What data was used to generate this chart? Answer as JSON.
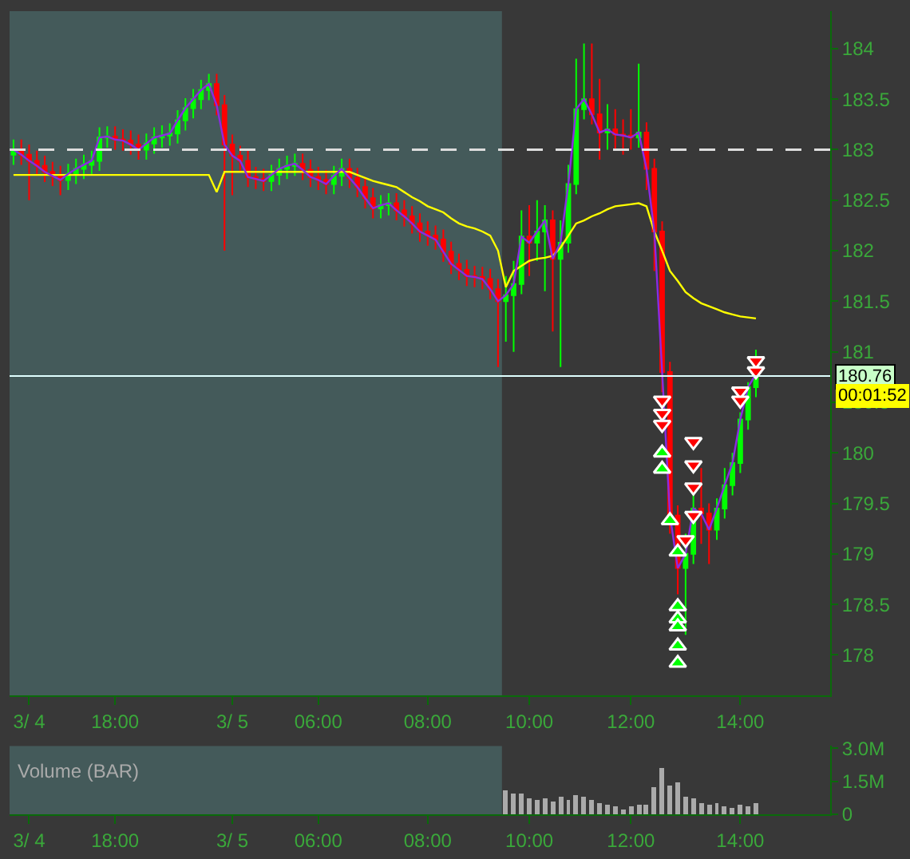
{
  "chart_data": [
    {
      "type": "candlestick",
      "categories": [
        null,
        null,
        "3/ 4",
        null,
        null,
        null,
        null,
        null,
        null,
        null,
        null,
        null,
        null,
        "18:00",
        null,
        null,
        null,
        null,
        null,
        null,
        null,
        null,
        null,
        null,
        null,
        null,
        null,
        null,
        "3/ 5",
        null,
        null,
        null,
        null,
        null,
        null,
        null,
        null,
        null,
        null,
        "06:00",
        null,
        null,
        null,
        null,
        null,
        null,
        null,
        null,
        null,
        null,
        null,
        null,
        null,
        "08:00",
        null,
        null,
        null,
        null,
        null,
        null,
        null,
        null,
        null,
        null,
        null,
        null,
        "10:00",
        null,
        null,
        null,
        null,
        null,
        null,
        null,
        null,
        null,
        null,
        null,
        null,
        "12:00",
        null,
        null,
        null,
        null,
        null,
        null,
        null,
        null,
        null,
        null,
        null,
        null,
        null,
        "14:00",
        null,
        null
      ],
      "ohlc": [
        [
          182.95,
          183.1,
          182.85,
          183.0
        ],
        [
          183.0,
          183.1,
          182.85,
          182.95
        ],
        [
          182.95,
          183.05,
          182.5,
          182.89
        ],
        [
          182.89,
          182.99,
          182.74,
          182.84
        ],
        [
          182.84,
          182.94,
          182.68,
          182.78
        ],
        [
          182.78,
          182.88,
          182.64,
          182.74
        ],
        [
          182.74,
          182.84,
          182.55,
          182.7
        ],
        [
          182.7,
          182.86,
          182.6,
          182.76
        ],
        [
          182.76,
          182.91,
          182.66,
          182.81
        ],
        [
          182.81,
          182.95,
          182.71,
          182.85
        ],
        [
          182.85,
          182.99,
          182.75,
          182.89
        ],
        [
          182.89,
          183.22,
          182.79,
          183.12
        ],
        [
          183.12,
          183.23,
          183.02,
          183.13
        ],
        [
          183.13,
          183.23,
          183.0,
          183.1
        ],
        [
          183.1,
          183.2,
          182.99,
          183.09
        ],
        [
          183.09,
          183.19,
          182.95,
          183.05
        ],
        [
          183.05,
          183.15,
          182.9,
          183.0
        ],
        [
          183.0,
          183.16,
          182.9,
          183.06
        ],
        [
          183.06,
          183.22,
          182.96,
          183.12
        ],
        [
          183.12,
          183.24,
          183.02,
          183.14
        ],
        [
          183.14,
          183.26,
          183.04,
          183.16
        ],
        [
          183.16,
          183.39,
          183.06,
          183.29
        ],
        [
          183.29,
          183.51,
          183.19,
          183.41
        ],
        [
          183.41,
          183.6,
          183.31,
          183.5
        ],
        [
          183.5,
          183.69,
          183.4,
          183.59
        ],
        [
          183.59,
          183.75,
          183.49,
          183.65
        ],
        [
          183.65,
          183.75,
          183.34,
          183.44
        ],
        [
          183.44,
          183.54,
          182.0,
          183.05
        ],
        [
          183.05,
          183.15,
          182.55,
          182.94
        ],
        [
          182.94,
          183.04,
          182.79,
          182.89
        ],
        [
          182.89,
          182.99,
          182.63,
          182.73
        ],
        [
          182.73,
          182.83,
          182.61,
          182.71
        ],
        [
          182.71,
          182.81,
          182.59,
          182.69
        ],
        [
          182.69,
          182.85,
          182.59,
          182.75
        ],
        [
          182.75,
          182.91,
          182.65,
          182.81
        ],
        [
          182.81,
          182.94,
          182.71,
          182.84
        ],
        [
          182.84,
          182.96,
          182.74,
          182.86
        ],
        [
          182.86,
          182.96,
          182.7,
          182.8
        ],
        [
          182.8,
          182.9,
          182.63,
          182.73
        ],
        [
          182.73,
          182.83,
          182.6,
          182.7
        ],
        [
          182.7,
          182.8,
          182.56,
          182.66
        ],
        [
          182.66,
          182.84,
          182.56,
          182.74
        ],
        [
          182.74,
          182.91,
          182.64,
          182.81
        ],
        [
          182.81,
          182.91,
          182.62,
          182.72
        ],
        [
          182.72,
          182.82,
          182.53,
          182.63
        ],
        [
          182.63,
          182.73,
          182.42,
          182.52
        ],
        [
          182.52,
          182.62,
          182.32,
          182.42
        ],
        [
          182.42,
          182.55,
          182.32,
          182.45
        ],
        [
          182.45,
          182.57,
          182.35,
          182.47
        ],
        [
          182.47,
          182.57,
          182.3,
          182.4
        ],
        [
          182.4,
          182.5,
          182.24,
          182.34
        ],
        [
          182.34,
          182.44,
          182.17,
          182.27
        ],
        [
          182.27,
          182.37,
          182.09,
          182.19
        ],
        [
          182.19,
          182.29,
          182.05,
          182.15
        ],
        [
          182.15,
          182.25,
          182.01,
          182.11
        ],
        [
          182.11,
          182.21,
          181.89,
          181.99
        ],
        [
          181.99,
          182.09,
          181.77,
          181.87
        ],
        [
          181.87,
          181.97,
          181.71,
          181.81
        ],
        [
          181.81,
          181.91,
          181.65,
          181.75
        ],
        [
          181.75,
          181.85,
          181.64,
          181.74
        ],
        [
          181.74,
          181.84,
          181.62,
          181.72
        ],
        [
          181.72,
          181.82,
          181.52,
          181.62
        ],
        [
          181.62,
          181.72,
          180.85,
          181.5
        ],
        [
          181.5,
          181.75,
          181.1,
          181.56
        ],
        [
          181.56,
          181.9,
          181.0,
          181.67
        ],
        [
          181.67,
          182.4,
          181.57,
          182.14
        ],
        [
          182.14,
          182.45,
          181.75,
          182.08
        ],
        [
          182.08,
          182.5,
          181.9,
          182.19
        ],
        [
          182.19,
          182.45,
          181.6,
          182.3
        ],
        [
          182.3,
          182.4,
          181.2,
          181.92
        ],
        [
          181.92,
          182.3,
          180.85,
          182.08
        ],
        [
          182.08,
          182.85,
          181.98,
          182.66
        ],
        [
          182.66,
          183.9,
          182.56,
          183.4
        ],
        [
          183.4,
          184.05,
          183.3,
          183.5
        ],
        [
          183.5,
          184.05,
          183.25,
          183.35
        ],
        [
          183.35,
          183.7,
          182.9,
          183.17
        ],
        [
          183.17,
          183.45,
          183.0,
          183.2
        ],
        [
          183.2,
          183.4,
          183.0,
          183.15
        ],
        [
          183.15,
          183.3,
          182.95,
          183.14
        ],
        [
          183.14,
          183.4,
          183.0,
          183.12
        ],
        [
          183.12,
          183.85,
          183.02,
          183.17
        ],
        [
          183.17,
          183.27,
          182.6,
          182.81
        ],
        [
          182.81,
          182.91,
          181.8,
          182.19
        ],
        [
          182.19,
          182.29,
          180.6,
          180.8
        ],
        [
          180.8,
          180.9,
          179.2,
          179.38
        ],
        [
          179.38,
          179.48,
          178.6,
          178.86
        ],
        [
          178.86,
          179.2,
          178.2,
          179.0
        ],
        [
          179.0,
          179.6,
          178.9,
          179.45
        ],
        [
          179.45,
          179.85,
          179.1,
          179.4
        ],
        [
          179.4,
          179.5,
          178.9,
          179.24
        ],
        [
          179.24,
          179.55,
          179.14,
          179.45
        ],
        [
          179.45,
          179.85,
          179.35,
          179.68
        ],
        [
          179.68,
          180.0,
          179.58,
          179.9
        ],
        [
          179.9,
          180.4,
          179.8,
          180.33
        ],
        [
          180.33,
          180.7,
          180.23,
          180.65
        ],
        [
          180.65,
          181.02,
          180.55,
          180.78
        ]
      ],
      "series": [
        {
          "type": "line",
          "color": "#ffff00",
          "values": [
            182.75,
            182.75,
            182.75,
            182.75,
            182.75,
            182.75,
            182.75,
            182.75,
            182.75,
            182.75,
            182.75,
            182.75,
            182.75,
            182.75,
            182.75,
            182.75,
            182.75,
            182.75,
            182.75,
            182.75,
            182.75,
            182.75,
            182.75,
            182.75,
            182.75,
            182.75,
            182.58,
            182.78,
            182.78,
            182.78,
            182.78,
            182.78,
            182.78,
            182.78,
            182.78,
            182.78,
            182.78,
            182.78,
            182.78,
            182.78,
            182.78,
            182.78,
            182.78,
            182.78,
            182.75,
            182.72,
            182.69,
            182.67,
            182.65,
            182.63,
            182.58,
            182.53,
            182.49,
            182.44,
            182.41,
            182.38,
            182.32,
            182.27,
            182.24,
            182.22,
            182.19,
            182.15,
            182.0,
            181.64,
            181.8,
            181.85,
            181.9,
            181.92,
            181.93,
            181.95,
            182.03,
            182.15,
            182.27,
            182.3,
            182.34,
            182.37,
            182.41,
            182.44,
            182.45,
            182.46,
            182.47,
            182.44,
            182.19,
            182.0,
            181.8,
            181.7,
            181.59,
            181.53,
            181.48,
            181.45,
            181.42,
            181.39,
            181.37,
            181.35,
            181.34,
            181.33
          ]
        },
        {
          "type": "line",
          "color": "#8a2be2",
          "values": [
            183.0,
            182.95,
            182.89,
            182.84,
            182.78,
            182.74,
            182.7,
            182.76,
            182.81,
            182.85,
            182.89,
            183.12,
            183.13,
            183.1,
            183.09,
            183.05,
            183.0,
            183.06,
            183.12,
            183.14,
            183.16,
            183.29,
            183.41,
            183.5,
            183.59,
            183.65,
            183.44,
            183.05,
            182.94,
            182.89,
            182.73,
            182.71,
            182.69,
            182.75,
            182.81,
            182.84,
            182.86,
            182.8,
            182.73,
            182.7,
            182.66,
            182.74,
            182.81,
            182.72,
            182.63,
            182.52,
            182.42,
            182.45,
            182.47,
            182.4,
            182.34,
            182.27,
            182.19,
            182.15,
            182.11,
            181.99,
            181.87,
            181.81,
            181.75,
            181.74,
            181.72,
            181.62,
            181.5,
            181.56,
            181.67,
            182.14,
            182.08,
            182.19,
            182.3,
            181.92,
            182.08,
            182.66,
            183.4,
            183.5,
            183.35,
            183.17,
            183.2,
            183.15,
            183.14,
            183.12,
            183.17,
            182.81,
            182.19,
            180.8,
            179.38,
            178.86,
            179.0,
            179.45,
            179.4,
            179.24,
            179.45,
            179.68,
            179.9,
            180.33,
            180.65,
            180.78
          ]
        },
        {
          "type": "scatter",
          "color": "#ff0000",
          "marker": "triangle-down",
          "values": [
            null,
            null,
            null,
            null,
            null,
            null,
            null,
            null,
            null,
            null,
            null,
            null,
            null,
            null,
            null,
            null,
            null,
            null,
            null,
            null,
            null,
            null,
            null,
            null,
            null,
            null,
            null,
            null,
            null,
            null,
            null,
            null,
            null,
            null,
            null,
            null,
            null,
            null,
            null,
            null,
            null,
            null,
            null,
            null,
            null,
            null,
            null,
            null,
            null,
            null,
            null,
            null,
            null,
            null,
            null,
            null,
            null,
            null,
            null,
            null,
            null,
            null,
            null,
            null,
            null,
            null,
            null,
            null,
            null,
            null,
            null,
            null,
            null,
            null,
            null,
            null,
            null,
            null,
            null,
            null,
            null,
            null,
            null,
            180.52,
            null,
            null,
            179.14,
            180.11,
            null,
            null,
            null,
            null,
            null,
            180.61,
            null,
            180.91
          ]
        },
        {
          "type": "scatter",
          "color": "#ff0000",
          "marker": "triangle-down",
          "values": [
            null,
            null,
            null,
            null,
            null,
            null,
            null,
            null,
            null,
            null,
            null,
            null,
            null,
            null,
            null,
            null,
            null,
            null,
            null,
            null,
            null,
            null,
            null,
            null,
            null,
            null,
            null,
            null,
            null,
            null,
            null,
            null,
            null,
            null,
            null,
            null,
            null,
            null,
            null,
            null,
            null,
            null,
            null,
            null,
            null,
            null,
            null,
            null,
            null,
            null,
            null,
            null,
            null,
            null,
            null,
            null,
            null,
            null,
            null,
            null,
            null,
            null,
            null,
            null,
            null,
            null,
            null,
            null,
            null,
            null,
            null,
            null,
            null,
            null,
            null,
            null,
            null,
            null,
            null,
            null,
            null,
            null,
            null,
            180.39,
            null,
            null,
            null,
            179.88,
            null,
            null,
            null,
            null,
            null,
            180.52,
            null,
            180.81
          ]
        },
        {
          "type": "scatter",
          "color": "#ff0000",
          "marker": "triangle-down",
          "values": [
            null,
            null,
            null,
            null,
            null,
            null,
            null,
            null,
            null,
            null,
            null,
            null,
            null,
            null,
            null,
            null,
            null,
            null,
            null,
            null,
            null,
            null,
            null,
            null,
            null,
            null,
            null,
            null,
            null,
            null,
            null,
            null,
            null,
            null,
            null,
            null,
            null,
            null,
            null,
            null,
            null,
            null,
            null,
            null,
            null,
            null,
            null,
            null,
            null,
            null,
            null,
            null,
            null,
            null,
            null,
            null,
            null,
            null,
            null,
            null,
            null,
            null,
            null,
            null,
            null,
            null,
            null,
            null,
            null,
            null,
            null,
            null,
            null,
            null,
            null,
            null,
            null,
            null,
            null,
            null,
            null,
            null,
            null,
            180.28,
            null,
            null,
            null,
            179.66,
            null,
            null,
            null,
            null,
            null,
            null,
            null,
            null
          ]
        },
        {
          "type": "scatter",
          "color": "#ff0000",
          "marker": "triangle-down",
          "values": [
            null,
            null,
            null,
            null,
            null,
            null,
            null,
            null,
            null,
            null,
            null,
            null,
            null,
            null,
            null,
            null,
            null,
            null,
            null,
            null,
            null,
            null,
            null,
            null,
            null,
            null,
            null,
            null,
            null,
            null,
            null,
            null,
            null,
            null,
            null,
            null,
            null,
            null,
            null,
            null,
            null,
            null,
            null,
            null,
            null,
            null,
            null,
            null,
            null,
            null,
            null,
            null,
            null,
            null,
            null,
            null,
            null,
            null,
            null,
            null,
            null,
            null,
            null,
            null,
            null,
            null,
            null,
            null,
            null,
            null,
            null,
            null,
            null,
            null,
            null,
            null,
            null,
            null,
            null,
            null,
            null,
            null,
            null,
            null,
            null,
            null,
            null,
            179.38,
            null,
            null,
            null,
            null,
            null,
            null,
            null,
            null
          ]
        },
        {
          "type": "scatter",
          "color": "#00ff00",
          "marker": "triangle-up",
          "values": [
            null,
            null,
            null,
            null,
            null,
            null,
            null,
            null,
            null,
            null,
            null,
            null,
            null,
            null,
            null,
            null,
            null,
            null,
            null,
            null,
            null,
            null,
            null,
            null,
            null,
            null,
            null,
            null,
            null,
            null,
            null,
            null,
            null,
            null,
            null,
            null,
            null,
            null,
            null,
            null,
            null,
            null,
            null,
            null,
            null,
            null,
            null,
            null,
            null,
            null,
            null,
            null,
            null,
            null,
            null,
            null,
            null,
            null,
            null,
            null,
            null,
            null,
            null,
            null,
            null,
            null,
            null,
            null,
            null,
            null,
            null,
            null,
            null,
            null,
            null,
            null,
            null,
            null,
            null,
            null,
            null,
            null,
            null,
            180.0,
            179.33,
            179.02,
            null,
            null,
            null,
            null,
            null,
            null,
            null,
            null,
            null,
            null
          ]
        },
        {
          "type": "scatter",
          "color": "#00ff00",
          "marker": "triangle-up",
          "values": [
            null,
            null,
            null,
            null,
            null,
            null,
            null,
            null,
            null,
            null,
            null,
            null,
            null,
            null,
            null,
            null,
            null,
            null,
            null,
            null,
            null,
            null,
            null,
            null,
            null,
            null,
            null,
            null,
            null,
            null,
            null,
            null,
            null,
            null,
            null,
            null,
            null,
            null,
            null,
            null,
            null,
            null,
            null,
            null,
            null,
            null,
            null,
            null,
            null,
            null,
            null,
            null,
            null,
            null,
            null,
            null,
            null,
            null,
            null,
            null,
            null,
            null,
            null,
            null,
            null,
            null,
            null,
            null,
            null,
            null,
            null,
            null,
            null,
            null,
            null,
            null,
            null,
            null,
            null,
            null,
            null,
            null,
            null,
            179.84,
            null,
            178.48,
            null,
            null,
            null,
            null,
            null,
            null,
            null,
            null,
            null,
            null
          ]
        },
        {
          "type": "scatter",
          "color": "#00ff00",
          "marker": "triangle-up",
          "values": [
            null,
            null,
            null,
            null,
            null,
            null,
            null,
            null,
            null,
            null,
            null,
            null,
            null,
            null,
            null,
            null,
            null,
            null,
            null,
            null,
            null,
            null,
            null,
            null,
            null,
            null,
            null,
            null,
            null,
            null,
            null,
            null,
            null,
            null,
            null,
            null,
            null,
            null,
            null,
            null,
            null,
            null,
            null,
            null,
            null,
            null,
            null,
            null,
            null,
            null,
            null,
            null,
            null,
            null,
            null,
            null,
            null,
            null,
            null,
            null,
            null,
            null,
            null,
            null,
            null,
            null,
            null,
            null,
            null,
            null,
            null,
            null,
            null,
            null,
            null,
            null,
            null,
            null,
            null,
            null,
            null,
            null,
            null,
            null,
            null,
            178.36,
            null,
            null,
            null,
            null,
            null,
            null,
            null,
            null,
            null,
            null
          ]
        },
        {
          "type": "scatter",
          "color": "#00ff00",
          "marker": "triangle-up",
          "values": [
            null,
            null,
            null,
            null,
            null,
            null,
            null,
            null,
            null,
            null,
            null,
            null,
            null,
            null,
            null,
            null,
            null,
            null,
            null,
            null,
            null,
            null,
            null,
            null,
            null,
            null,
            null,
            null,
            null,
            null,
            null,
            null,
            null,
            null,
            null,
            null,
            null,
            null,
            null,
            null,
            null,
            null,
            null,
            null,
            null,
            null,
            null,
            null,
            null,
            null,
            null,
            null,
            null,
            null,
            null,
            null,
            null,
            null,
            null,
            null,
            null,
            null,
            null,
            null,
            null,
            null,
            null,
            null,
            null,
            null,
            null,
            null,
            null,
            null,
            null,
            null,
            null,
            null,
            null,
            null,
            null,
            null,
            null,
            null,
            null,
            178.28,
            null,
            null,
            null,
            null,
            null,
            null,
            null,
            null,
            null,
            null
          ]
        },
        {
          "type": "scatter",
          "color": "#00ff00",
          "marker": "triangle-up",
          "values": [
            null,
            null,
            null,
            null,
            null,
            null,
            null,
            null,
            null,
            null,
            null,
            null,
            null,
            null,
            null,
            null,
            null,
            null,
            null,
            null,
            null,
            null,
            null,
            null,
            null,
            null,
            null,
            null,
            null,
            null,
            null,
            null,
            null,
            null,
            null,
            null,
            null,
            null,
            null,
            null,
            null,
            null,
            null,
            null,
            null,
            null,
            null,
            null,
            null,
            null,
            null,
            null,
            null,
            null,
            null,
            null,
            null,
            null,
            null,
            null,
            null,
            null,
            null,
            null,
            null,
            null,
            null,
            null,
            null,
            null,
            null,
            null,
            null,
            null,
            null,
            null,
            null,
            null,
            null,
            null,
            null,
            null,
            null,
            null,
            null,
            178.09,
            null,
            null,
            null,
            null,
            null,
            null,
            null,
            null,
            null,
            null
          ]
        },
        {
          "type": "scatter",
          "color": "#00ff00",
          "marker": "triangle-up",
          "values": [
            null,
            null,
            null,
            null,
            null,
            null,
            null,
            null,
            null,
            null,
            null,
            null,
            null,
            null,
            null,
            null,
            null,
            null,
            null,
            null,
            null,
            null,
            null,
            null,
            null,
            null,
            null,
            null,
            null,
            null,
            null,
            null,
            null,
            null,
            null,
            null,
            null,
            null,
            null,
            null,
            null,
            null,
            null,
            null,
            null,
            null,
            null,
            null,
            null,
            null,
            null,
            null,
            null,
            null,
            null,
            null,
            null,
            null,
            null,
            null,
            null,
            null,
            null,
            null,
            null,
            null,
            null,
            null,
            null,
            null,
            null,
            null,
            null,
            null,
            null,
            null,
            null,
            null,
            null,
            null,
            null,
            null,
            null,
            null,
            null,
            177.92,
            null,
            null,
            null,
            null,
            null,
            null,
            null,
            null,
            null,
            null
          ]
        }
      ],
      "ylim": [
        177.6,
        184.37
      ],
      "yticks": [
        178,
        178.5,
        179,
        179.5,
        180,
        180.5,
        181,
        181.5,
        182,
        182.5,
        183,
        183.5,
        184
      ],
      "ref_lines": [
        {
          "axis": "y",
          "value": 183,
          "color": "#dddddd",
          "line_style": "dashed"
        },
        {
          "axis": "y",
          "value": 180.76,
          "label": "180.76",
          "color": "#e0ffff"
        }
      ],
      "annotations": [
        "00:01:52"
      ],
      "grid": false
    },
    {
      "type": "bar",
      "title": "Volume (BAR)",
      "color": "#aaaaaa",
      "categories": [
        null,
        null,
        "3/ 4",
        null,
        null,
        null,
        null,
        null,
        null,
        null,
        null,
        null,
        null,
        "18:00",
        null,
        null,
        null,
        null,
        null,
        null,
        null,
        null,
        null,
        null,
        null,
        null,
        null,
        null,
        "3/ 5",
        null,
        null,
        null,
        null,
        null,
        null,
        null,
        null,
        null,
        null,
        "06:00",
        null,
        null,
        null,
        null,
        null,
        null,
        null,
        null,
        null,
        null,
        null,
        null,
        null,
        "08:00",
        null,
        null,
        null,
        null,
        null,
        null,
        null,
        null,
        null,
        null,
        null,
        null,
        "10:00",
        null,
        null,
        null,
        null,
        null,
        null,
        null,
        null,
        null,
        null,
        null,
        null,
        "12:00",
        null,
        null,
        null,
        null,
        null,
        null,
        null,
        null,
        null,
        null,
        null,
        null,
        null,
        "14:00",
        null,
        null
      ],
      "values": [
        null,
        null,
        null,
        null,
        null,
        null,
        null,
        null,
        null,
        null,
        null,
        null,
        null,
        null,
        null,
        null,
        null,
        null,
        null,
        null,
        null,
        null,
        null,
        null,
        null,
        null,
        null,
        null,
        null,
        null,
        null,
        null,
        null,
        null,
        null,
        null,
        null,
        null,
        null,
        null,
        null,
        null,
        null,
        null,
        null,
        null,
        null,
        null,
        null,
        null,
        null,
        null,
        null,
        null,
        null,
        null,
        null,
        null,
        null,
        null,
        null,
        null,
        null,
        1100000,
        900000,
        950000,
        700000,
        600000,
        700000,
        550000,
        800000,
        650000,
        850000,
        750000,
        600000,
        500000,
        450000,
        350000,
        200000,
        350000,
        450000,
        400000,
        1200000,
        2100000,
        1300000,
        1400000,
        800000,
        700000,
        500000,
        450000,
        500000,
        350000,
        300000,
        450000,
        350000,
        500000
      ],
      "ylim": [
        0,
        3100000
      ],
      "yticks": [
        0,
        {
          "value": 1500000,
          "label": "1.5M"
        },
        {
          "value": 3000000,
          "label": "3.0M"
        }
      ],
      "grid": false
    }
  ]
}
